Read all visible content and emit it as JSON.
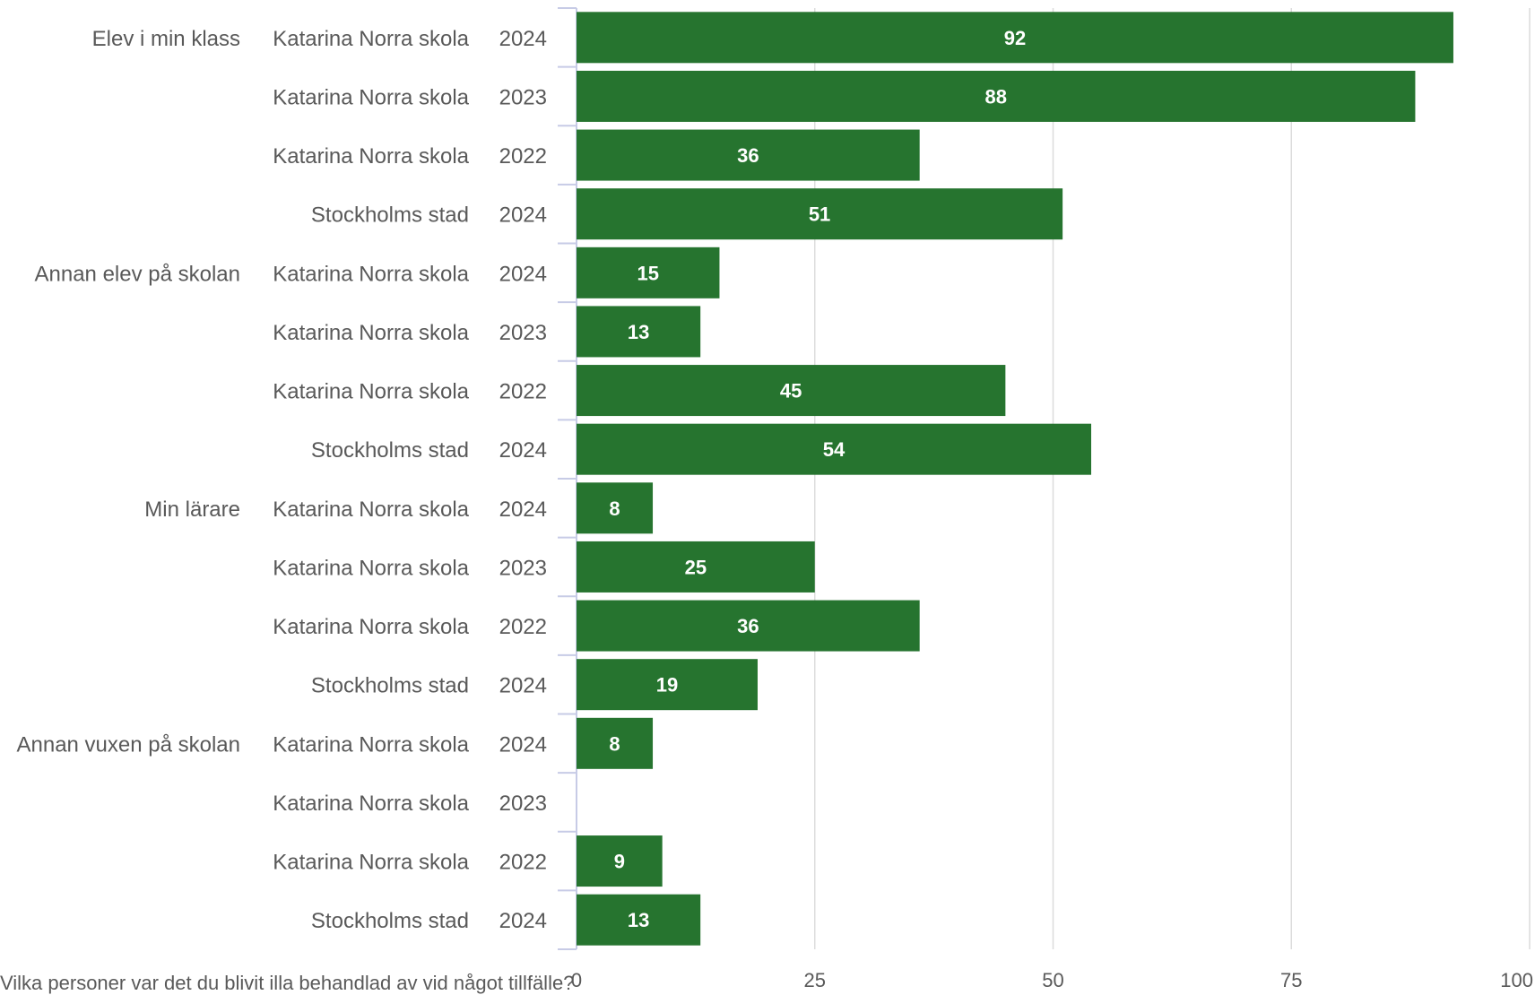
{
  "chart_data": {
    "type": "bar",
    "orientation": "horizontal",
    "groups": [
      "Elev i min klass",
      "Annan elev på skolan",
      "Min lärare",
      "Annan vuxen på skolan"
    ],
    "rows": [
      {
        "group": "Elev i min klass",
        "unit": "Katarina Norra skola",
        "year": "2024",
        "value": 92
      },
      {
        "group": "",
        "unit": "Katarina Norra skola",
        "year": "2023",
        "value": 88
      },
      {
        "group": "",
        "unit": "Katarina Norra skola",
        "year": "2022",
        "value": 36
      },
      {
        "group": "",
        "unit": "Stockholms stad",
        "year": "2024",
        "value": 51
      },
      {
        "group": "Annan elev på skolan",
        "unit": "Katarina Norra skola",
        "year": "2024",
        "value": 15
      },
      {
        "group": "",
        "unit": "Katarina Norra skola",
        "year": "2023",
        "value": 13
      },
      {
        "group": "",
        "unit": "Katarina Norra skola",
        "year": "2022",
        "value": 45
      },
      {
        "group": "",
        "unit": "Stockholms stad",
        "year": "2024",
        "value": 54
      },
      {
        "group": "Min lärare",
        "unit": "Katarina Norra skola",
        "year": "2024",
        "value": 8
      },
      {
        "group": "",
        "unit": "Katarina Norra skola",
        "year": "2023",
        "value": 25
      },
      {
        "group": "",
        "unit": "Katarina Norra skola",
        "year": "2022",
        "value": 36
      },
      {
        "group": "",
        "unit": "Stockholms stad",
        "year": "2024",
        "value": 19
      },
      {
        "group": "Annan vuxen på skolan",
        "unit": "Katarina Norra skola",
        "year": "2024",
        "value": 8
      },
      {
        "group": "",
        "unit": "Katarina Norra skola",
        "year": "2023",
        "value": null
      },
      {
        "group": "",
        "unit": "Katarina Norra skola",
        "year": "2022",
        "value": 9
      },
      {
        "group": "",
        "unit": "Stockholms stad",
        "year": "2024",
        "value": 13
      }
    ],
    "xlim": [
      0,
      100
    ],
    "xticks": [
      0,
      25,
      50,
      75,
      100
    ],
    "bar_color": "#26742f",
    "grid": true
  },
  "footnote": "Vilka personer var det du blivit illa behandlad av vid något tillfälle?"
}
